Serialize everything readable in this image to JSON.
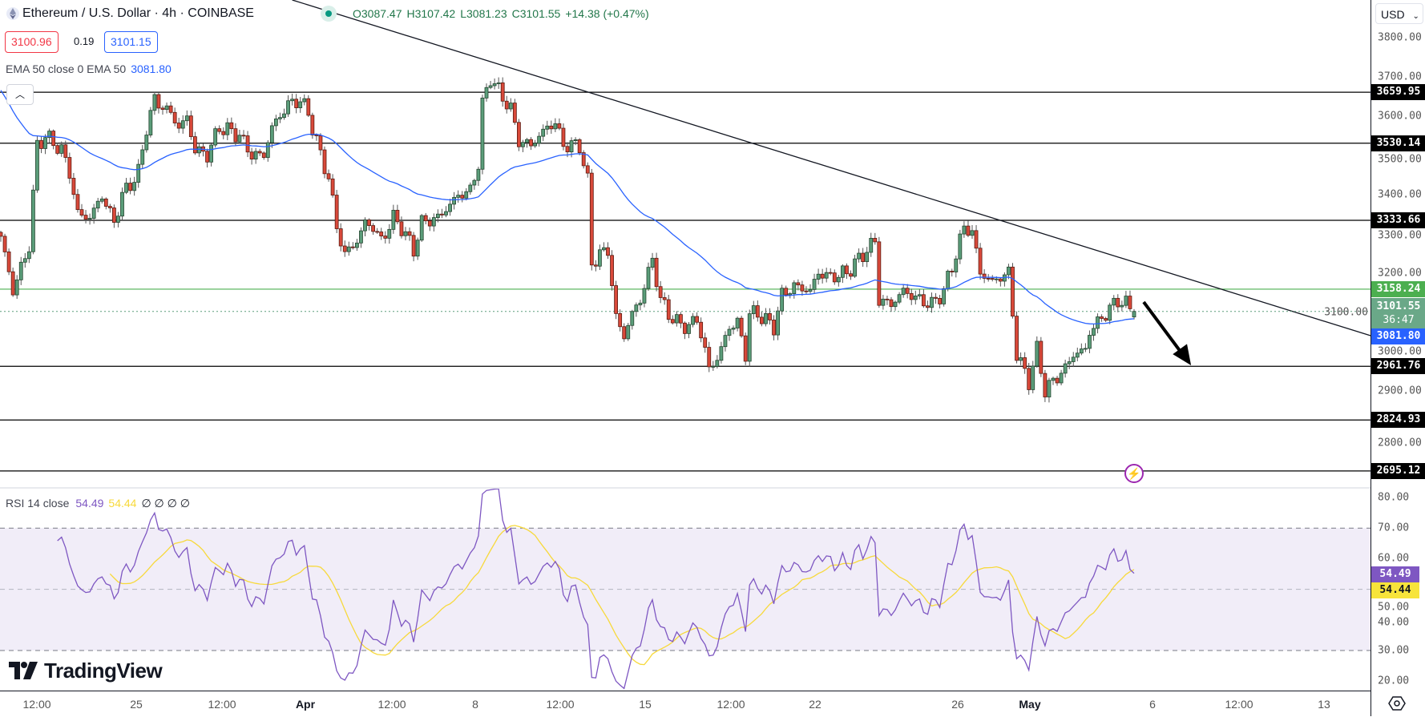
{
  "header": {
    "title": "Ethereum / U.S. Dollar · 4h · COINBASE",
    "open": "O3087.47",
    "high": "H3107.42",
    "low": "L3081.23",
    "close": "C3101.55",
    "change": "+14.38 (+0.47%)",
    "bid": "3100.96",
    "spread": "0.19",
    "ask": "3101.15",
    "ema_legend": "EMA 50 close 0 EMA 50",
    "ema_value": "3081.80",
    "collapse_icon": "chevron-up"
  },
  "rsi_legend": {
    "label": "RSI 14 close",
    "rsi": "54.49",
    "ma": "54.44",
    "nulls": "∅ ∅ ∅ ∅"
  },
  "axis": {
    "currency": "USD",
    "price_ticks": [
      "3800.00",
      "3700.00",
      "3600.00",
      "3500.00",
      "3400.00",
      "3300.00",
      "3200.00",
      "3100.00",
      "3000.00",
      "2900.00",
      "2800.00"
    ],
    "rsi_ticks": [
      "80.00",
      "70.00",
      "60.00",
      "50.00",
      "40.00",
      "30.00",
      "20.00"
    ],
    "current_price": "3101.55",
    "countdown": "36:47",
    "ema_label": "3081.80",
    "rsi_label": "54.49",
    "rsi_ma_label": "54.44"
  },
  "time_axis": [
    "12:00",
    "25",
    "12:00",
    "Apr",
    "12:00",
    "8",
    "12:00",
    "15",
    "12:00",
    "22",
    "26",
    "May",
    "6",
    "12:00",
    "13"
  ],
  "logo": "TradingView",
  "colors": {
    "up": "#5b9d7a",
    "down": "#d9493a",
    "ema": "#2962ff",
    "rsi": "#7e57c2",
    "rsi_ma": "#f7d93b",
    "support_green": "#4caf50",
    "current": "#6aa888"
  },
  "chart_data": {
    "type": "candlestick",
    "symbol": "ETH/USD",
    "interval": "4h",
    "ylim": [
      2650,
      3895
    ],
    "last_candle": {
      "open": 3087.47,
      "high": 3107.42,
      "low": 3081.23,
      "close": 3101.55
    },
    "close_waypoints": [
      [
        0,
        3293
      ],
      [
        3,
        3154
      ],
      [
        7,
        3270
      ],
      [
        9,
        3525
      ],
      [
        11,
        3548
      ],
      [
        15,
        3513
      ],
      [
        17,
        3455
      ],
      [
        19,
        3350
      ],
      [
        22,
        3340
      ],
      [
        25,
        3397
      ],
      [
        28,
        3328
      ],
      [
        30,
        3397
      ],
      [
        34,
        3455
      ],
      [
        36,
        3571
      ],
      [
        38,
        3640
      ],
      [
        42,
        3606
      ],
      [
        44,
        3571
      ],
      [
        46,
        3594
      ],
      [
        48,
        3513
      ],
      [
        51,
        3500
      ],
      [
        54,
        3571
      ],
      [
        57,
        3560
      ],
      [
        59,
        3548
      ],
      [
        62,
        3500
      ],
      [
        65,
        3500
      ],
      [
        67,
        3571
      ],
      [
        71,
        3629
      ],
      [
        74,
        3640
      ],
      [
        76,
        3606
      ],
      [
        79,
        3500
      ],
      [
        81,
        3443
      ],
      [
        83,
        3316
      ],
      [
        85,
        3247
      ],
      [
        88,
        3281
      ],
      [
        90,
        3328
      ],
      [
        92,
        3316
      ],
      [
        94,
        3281
      ],
      [
        97,
        3340
      ],
      [
        99,
        3316
      ],
      [
        102,
        3258
      ],
      [
        104,
        3328
      ],
      [
        108,
        3340
      ],
      [
        110,
        3362
      ],
      [
        113,
        3397
      ],
      [
        116,
        3409
      ],
      [
        118,
        3478
      ],
      [
        119,
        3629
      ],
      [
        121,
        3698
      ],
      [
        123,
        3663
      ],
      [
        126,
        3617
      ],
      [
        128,
        3536
      ],
      [
        131,
        3525
      ],
      [
        135,
        3571
      ],
      [
        137,
        3582
      ],
      [
        139,
        3525
      ],
      [
        143,
        3525
      ],
      [
        145,
        3432
      ],
      [
        146,
        3224
      ],
      [
        148,
        3247
      ],
      [
        150,
        3258
      ],
      [
        152,
        3085
      ],
      [
        154,
        3039
      ],
      [
        156,
        3096
      ],
      [
        158,
        3131
      ],
      [
        161,
        3235
      ],
      [
        163,
        3131
      ],
      [
        165,
        3096
      ],
      [
        167,
        3073
      ],
      [
        170,
        3062
      ],
      [
        172,
        3085
      ],
      [
        175,
        2957
      ],
      [
        177,
        2980
      ],
      [
        180,
        3062
      ],
      [
        182,
        3073
      ],
      [
        184,
        2992
      ],
      [
        185,
        3096
      ],
      [
        187,
        3096
      ],
      [
        191,
        3062
      ],
      [
        193,
        3143
      ],
      [
        196,
        3166
      ],
      [
        200,
        3154
      ],
      [
        202,
        3200
      ],
      [
        205,
        3189
      ],
      [
        209,
        3200
      ],
      [
        212,
        3235
      ],
      [
        216,
        3281
      ],
      [
        217,
        3131
      ],
      [
        220,
        3119
      ],
      [
        223,
        3154
      ],
      [
        227,
        3131
      ],
      [
        230,
        3119
      ],
      [
        233,
        3154
      ],
      [
        236,
        3247
      ],
      [
        238,
        3316
      ],
      [
        240,
        3305
      ],
      [
        242,
        3200
      ],
      [
        245,
        3177
      ],
      [
        247,
        3189
      ],
      [
        249,
        3200
      ],
      [
        250,
        3096
      ],
      [
        251,
        2992
      ],
      [
        254,
        2923
      ],
      [
        256,
        3004
      ],
      [
        258,
        2900
      ],
      [
        260,
        2923
      ],
      [
        263,
        2957
      ],
      [
        265,
        2992
      ],
      [
        268,
        3004
      ],
      [
        269,
        3050
      ],
      [
        272,
        3085
      ],
      [
        274,
        3108
      ],
      [
        276,
        3131
      ],
      [
        278,
        3119
      ],
      [
        280,
        3101.55
      ]
    ],
    "indicators": [
      {
        "name": "EMA 50",
        "source": "close",
        "last": 3081.8
      },
      {
        "name": "RSI 14",
        "source": "close",
        "last": 54.49,
        "ma_last": 54.44,
        "bands": [
          30,
          70
        ],
        "ylim": [
          20,
          80
        ]
      }
    ],
    "horizontal_levels": [
      {
        "price": 3659.95,
        "label": "3659.95",
        "color": "#000000"
      },
      {
        "price": 3530.14,
        "label": "3530.14",
        "color": "#000000"
      },
      {
        "price": 3333.66,
        "label": "3333.66",
        "color": "#000000"
      },
      {
        "price": 3158.24,
        "label": "3158.24",
        "color": "#4caf50"
      },
      {
        "price": 2961.76,
        "label": "2961.76",
        "color": "#000000"
      },
      {
        "price": 2824.93,
        "label": "2824.93",
        "color": "#000000"
      },
      {
        "price": 2695.12,
        "label": "2695.12",
        "color": "#000000"
      }
    ],
    "trendline": [
      [
        72,
        3895
      ],
      [
        339,
        3038
      ]
    ],
    "annotation": "down-arrow"
  }
}
